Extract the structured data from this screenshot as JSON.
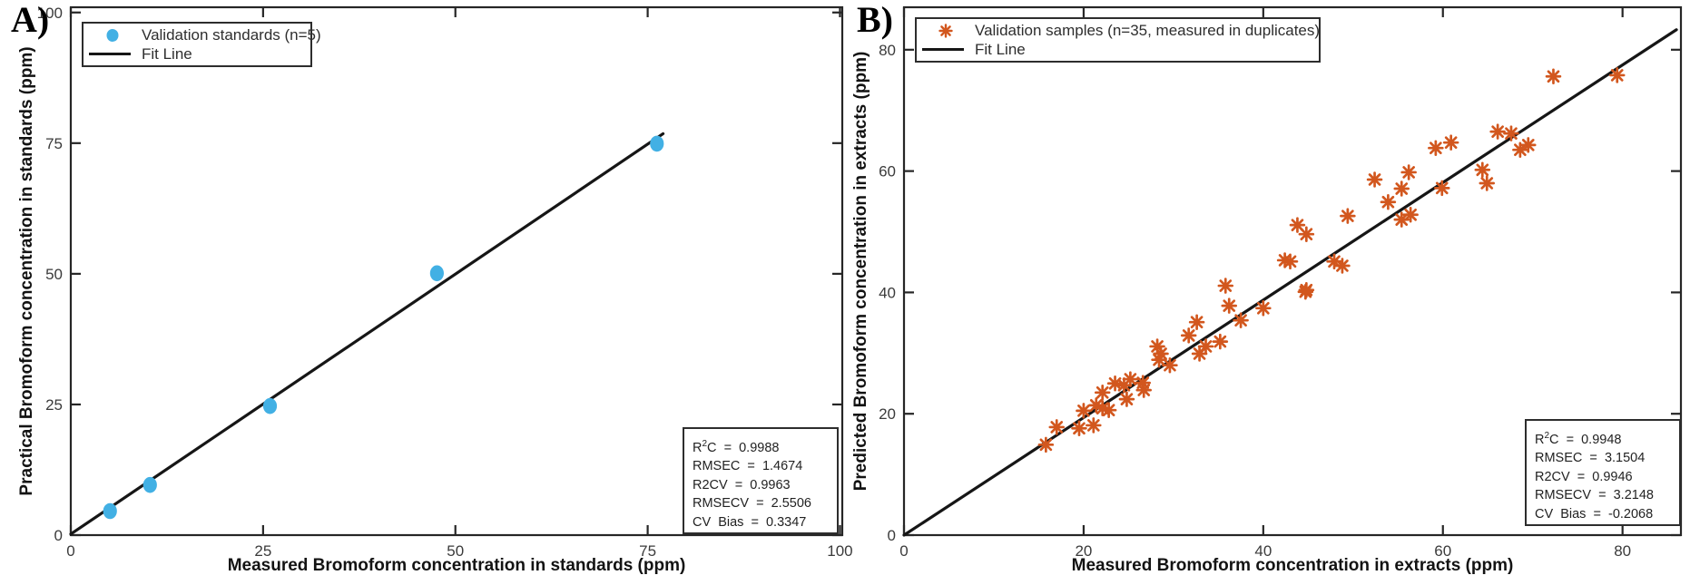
{
  "figure": {
    "panel_a_label": "A)",
    "panel_b_label": "B)"
  },
  "colors": {
    "standards_marker": "#42B0E4",
    "samples_marker": "#D2571E",
    "fit_line": "#161616",
    "axis": "#262626"
  },
  "chart_data": [
    {
      "type": "scatter",
      "panel": "A",
      "xlabel": "Measured Bromoform concentration in standards (ppm)",
      "ylabel": "Practical Bromoform concentration in standards (ppm)",
      "xlim": [
        0,
        100.3
      ],
      "ylim": [
        0,
        101
      ],
      "xticks": [
        0,
        25,
        50,
        75,
        100
      ],
      "yticks": [
        0,
        25,
        50,
        75,
        100
      ],
      "grid": false,
      "legend_position": "top-left",
      "series": [
        {
          "name": "Validation standards (n=5)",
          "marker": "circle",
          "color": "#42B0E4",
          "points": [
            [
              5.1,
              4.6
            ],
            [
              10.3,
              9.6
            ],
            [
              25.9,
              24.7
            ],
            [
              47.6,
              50.1
            ],
            [
              76.2,
              74.9
            ]
          ]
        },
        {
          "name": "Fit Line",
          "marker": "line",
          "color": "#161616",
          "from": [
            0,
            0.2
          ],
          "to": [
            77.0,
            76.8
          ]
        }
      ],
      "stats": {
        "sup_line": {
          "pre": "R",
          "sup": "2",
          "rest": "C  =  0.9988"
        },
        "lines": [
          "RMSEC  =  1.4674",
          "R2CV  =  0.9963",
          "RMSECV  =  2.5506",
          "CV  Bias  =  0.3347"
        ]
      }
    },
    {
      "type": "scatter",
      "panel": "B",
      "xlabel": "Measured Bromoform concentration in extracts (ppm)",
      "ylabel": "Predicted Bromoform concentration in extracts (ppm)",
      "xlim": [
        0,
        86.5
      ],
      "ylim": [
        0,
        87
      ],
      "xticks": [
        0,
        20,
        40,
        60,
        80
      ],
      "yticks": [
        0,
        20,
        40,
        60,
        80
      ],
      "grid": false,
      "legend_position": "top-left",
      "series": [
        {
          "name": "Validation samples (n=35, measured in duplicates)",
          "marker": "asterisk",
          "color": "#D2571E",
          "points": [
            [
              15.8,
              14.9
            ],
            [
              17.0,
              17.8
            ],
            [
              19.5,
              17.6
            ],
            [
              20.0,
              20.5
            ],
            [
              21.1,
              18.1
            ],
            [
              21.4,
              21.4
            ],
            [
              22.1,
              20.9
            ],
            [
              22.8,
              20.6
            ],
            [
              22.1,
              23.5
            ],
            [
              23.5,
              25.0
            ],
            [
              24.5,
              24.7
            ],
            [
              25.2,
              25.7
            ],
            [
              24.8,
              22.4
            ],
            [
              26.6,
              25.1
            ],
            [
              26.7,
              23.9
            ],
            [
              28.2,
              31.1
            ],
            [
              28.4,
              28.9
            ],
            [
              28.6,
              29.9
            ],
            [
              29.6,
              28.0
            ],
            [
              31.7,
              32.9
            ],
            [
              32.6,
              35.1
            ],
            [
              32.9,
              29.9
            ],
            [
              33.6,
              31.1
            ],
            [
              35.2,
              31.9
            ],
            [
              35.8,
              41.1
            ],
            [
              36.2,
              37.8
            ],
            [
              37.5,
              35.4
            ],
            [
              40.0,
              37.4
            ],
            [
              42.4,
              45.3
            ],
            [
              43.0,
              45.1
            ],
            [
              43.8,
              51.1
            ],
            [
              44.7,
              40.1
            ],
            [
              44.8,
              49.6
            ],
            [
              44.8,
              40.4
            ],
            [
              47.9,
              45.1
            ],
            [
              48.8,
              44.4
            ],
            [
              49.4,
              52.6
            ],
            [
              52.4,
              58.6
            ],
            [
              53.9,
              54.9
            ],
            [
              55.4,
              57.1
            ],
            [
              55.4,
              52.0
            ],
            [
              56.4,
              52.8
            ],
            [
              56.2,
              59.8
            ],
            [
              59.2,
              63.8
            ],
            [
              59.9,
              57.2
            ],
            [
              60.9,
              64.7
            ],
            [
              64.4,
              60.2
            ],
            [
              64.9,
              58.0
            ],
            [
              66.1,
              66.5
            ],
            [
              67.6,
              66.2
            ],
            [
              68.6,
              63.5
            ],
            [
              69.5,
              64.3
            ],
            [
              72.3,
              75.6
            ],
            [
              79.4,
              75.8
            ]
          ]
        },
        {
          "name": "Fit Line",
          "marker": "line",
          "color": "#161616",
          "from": [
            0,
            0
          ],
          "to": [
            86.0,
            83.3
          ]
        }
      ],
      "stats": {
        "sup_line": {
          "pre": "R",
          "sup": "2",
          "rest": "C  =  0.9948"
        },
        "lines": [
          "RMSEC  =  3.1504",
          "R2CV  =  0.9946",
          "RMSECV  =  3.2148",
          "CV  Bias  =  -0.2068"
        ]
      }
    }
  ]
}
